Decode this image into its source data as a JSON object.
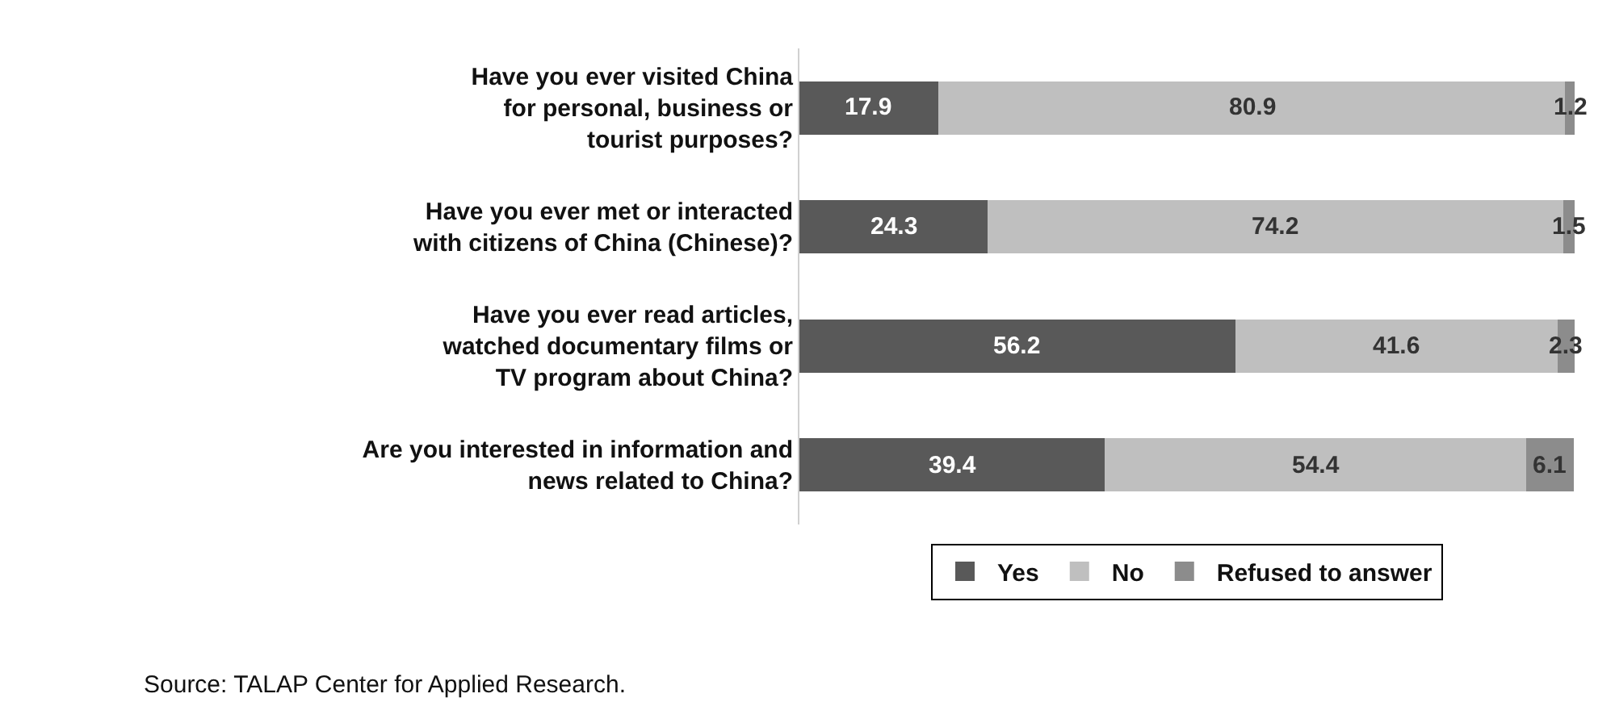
{
  "chart_data": {
    "type": "bar",
    "orientation": "horizontal",
    "stacked": true,
    "data_labels": true,
    "tick_labels": "y",
    "xlim": [
      0,
      100
    ],
    "legend": "bottom",
    "categories": [
      "Have you ever visited China\nfor personal, business or\ntourist purposes?",
      "Have you ever met or interacted\nwith citizens of China (Chinese)?",
      "Have you ever read articles,\nwatched documentary films or\nTV program about China?",
      "Are you interested in information and\nnews related to China?"
    ],
    "series": [
      {
        "name": "Yes",
        "color": "#595959",
        "values": [
          17.9,
          24.3,
          56.2,
          39.4
        ]
      },
      {
        "name": "No",
        "color": "#bfbfbf",
        "values": [
          80.9,
          74.2,
          41.6,
          54.4
        ]
      },
      {
        "name": "Refused to answer",
        "color": "#8c8c8c",
        "values": [
          1.2,
          1.5,
          2.3,
          6.1
        ]
      }
    ],
    "annotations": [
      "Source: TALAP Center for Applied Research."
    ]
  }
}
